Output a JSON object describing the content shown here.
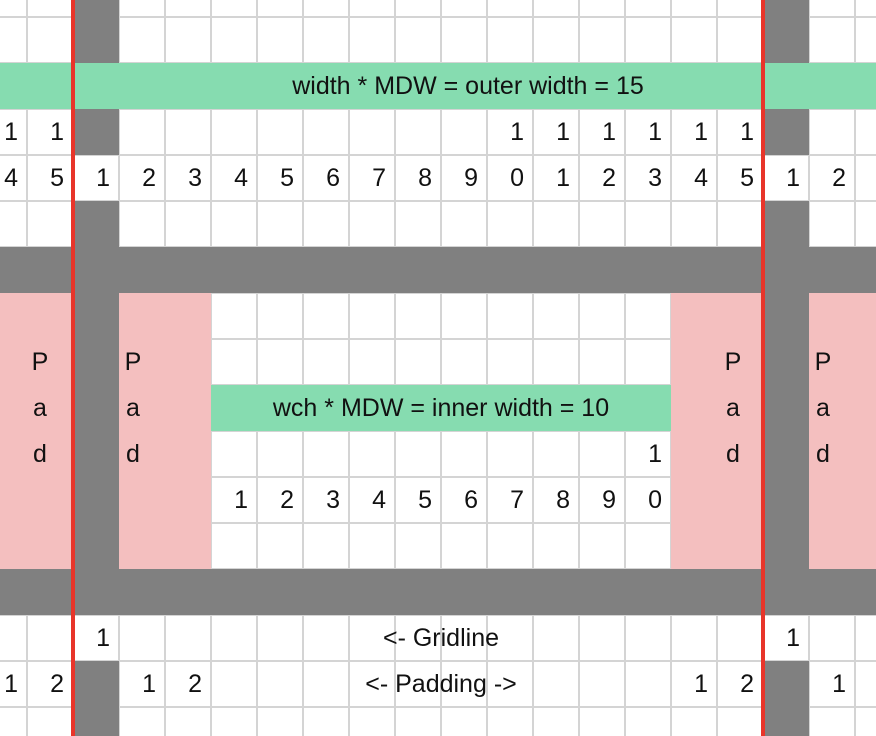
{
  "colors": {
    "gray": "#808080",
    "green": "#86dcb0",
    "pink": "#f4bfbf",
    "red": "#e8352a"
  },
  "outer_label": "width * MDW = outer width = 15",
  "inner_label": "wch * MDW = inner width = 10",
  "gridline_label": "<- Gridline",
  "padding_label": "<- Padding ->",
  "pad_text": [
    "P",
    "a",
    "d"
  ],
  "rows": {
    "outer_tens": [
      [
        "0",
        "1"
      ],
      [
        "1",
        "1"
      ],
      [
        "11",
        "1"
      ],
      [
        "12",
        "1"
      ],
      [
        "13",
        "1"
      ],
      [
        "14",
        "1"
      ],
      [
        "15",
        "1"
      ],
      [
        "16",
        "1"
      ]
    ],
    "outer_ones": [
      [
        "0",
        "4"
      ],
      [
        "1",
        "5"
      ],
      [
        "2",
        "1"
      ],
      [
        "3",
        "2"
      ],
      [
        "4",
        "3"
      ],
      [
        "5",
        "4"
      ],
      [
        "6",
        "5"
      ],
      [
        "7",
        "6"
      ],
      [
        "8",
        "7"
      ],
      [
        "9",
        "8"
      ],
      [
        "10",
        "9"
      ],
      [
        "11",
        "0"
      ],
      [
        "12",
        "1"
      ],
      [
        "13",
        "2"
      ],
      [
        "14",
        "3"
      ],
      [
        "15",
        "4"
      ],
      [
        "16",
        "5"
      ],
      [
        "17",
        "1"
      ],
      [
        "18",
        "2"
      ]
    ],
    "inner_tens": [
      [
        "14",
        "1"
      ]
    ],
    "inner_ones": [
      [
        "5",
        "1"
      ],
      [
        "6",
        "2"
      ],
      [
        "7",
        "3"
      ],
      [
        "8",
        "4"
      ],
      [
        "9",
        "5"
      ],
      [
        "10",
        "6"
      ],
      [
        "11",
        "7"
      ],
      [
        "12",
        "8"
      ],
      [
        "13",
        "9"
      ],
      [
        "14",
        "0"
      ]
    ],
    "gridline": [
      [
        "2",
        "1"
      ],
      [
        "17",
        "1"
      ]
    ],
    "padding": [
      [
        "0",
        "1"
      ],
      [
        "1",
        "2"
      ],
      [
        "3",
        "1"
      ],
      [
        "4",
        "2"
      ],
      [
        "15",
        "1"
      ],
      [
        "16",
        "2"
      ],
      [
        "18",
        "1"
      ]
    ]
  }
}
